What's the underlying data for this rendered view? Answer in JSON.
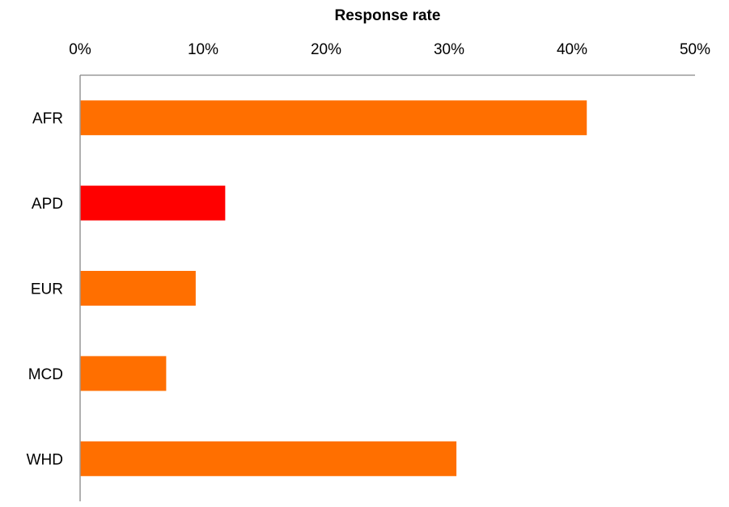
{
  "chart_data": {
    "type": "bar",
    "orientation": "horizontal",
    "xlabel": "Response rate",
    "categories": [
      "AFR",
      "APD",
      "EUR",
      "MCD",
      "WHD"
    ],
    "values": [
      41.2,
      11.8,
      9.4,
      7.0,
      30.6
    ],
    "xlim": [
      0,
      50
    ],
    "xticks": [
      0,
      10,
      20,
      30,
      40,
      50
    ],
    "xtick_labels": [
      "0%",
      "10%",
      "20%",
      "30%",
      "40%",
      "50%"
    ],
    "x_axis_position": "top",
    "grid": false,
    "legend": "none",
    "colors": {
      "default_bar": "#FF6F00",
      "highlight_bar": "#FF0000",
      "axis": "#868686"
    },
    "highlight_category": "APD"
  }
}
